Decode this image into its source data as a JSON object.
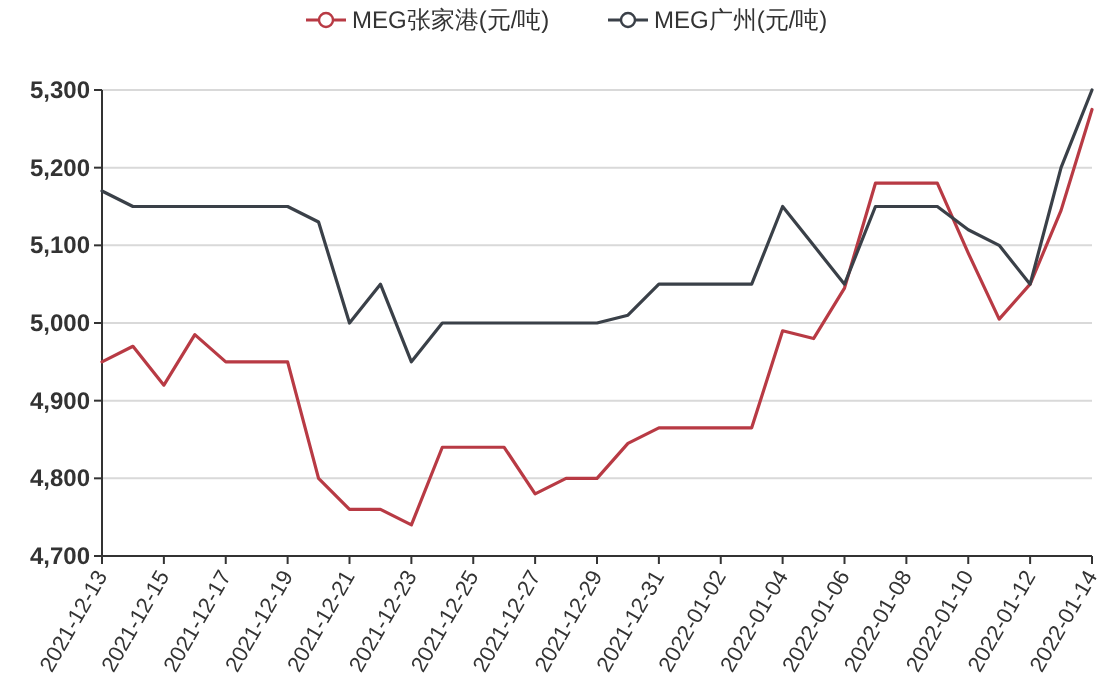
{
  "chart_data": {
    "type": "line",
    "x": [
      "2021-12-13",
      "2021-12-14",
      "2021-12-15",
      "2021-12-16",
      "2021-12-17",
      "2021-12-18",
      "2021-12-19",
      "2021-12-20",
      "2021-12-21",
      "2021-12-22",
      "2021-12-23",
      "2021-12-24",
      "2021-12-25",
      "2021-12-26",
      "2021-12-27",
      "2021-12-28",
      "2021-12-29",
      "2021-12-30",
      "2021-12-31",
      "2022-01-01",
      "2022-01-02",
      "2022-01-03",
      "2022-01-04",
      "2022-01-05",
      "2022-01-06",
      "2022-01-07",
      "2022-01-08",
      "2022-01-09",
      "2022-01-10",
      "2022-01-11",
      "2022-01-12",
      "2022-01-13",
      "2022-01-14"
    ],
    "series": [
      {
        "name": "MEG张家港(元/吨)",
        "color": "#b83a44",
        "values": [
          4950,
          4970,
          4920,
          4985,
          4950,
          4950,
          4950,
          4800,
          4760,
          4760,
          4740,
          4840,
          4840,
          4840,
          4780,
          4800,
          4800,
          4845,
          4865,
          4865,
          4865,
          4865,
          4990,
          4980,
          5045,
          5180,
          5180,
          5180,
          5090,
          5005,
          5050,
          5145,
          5275
        ]
      },
      {
        "name": "MEG广州(元/吨)",
        "color": "#3a4048",
        "values": [
          5170,
          5150,
          5150,
          5150,
          5150,
          5150,
          5150,
          5130,
          5000,
          5050,
          4950,
          5000,
          5000,
          5000,
          5000,
          5000,
          5000,
          5010,
          5050,
          5050,
          5050,
          5050,
          5150,
          5100,
          5050,
          5150,
          5150,
          5150,
          5120,
          5100,
          5050,
          5200,
          5300
        ]
      }
    ],
    "xlim": [
      "2021-12-13",
      "2022-01-14"
    ],
    "xticks": [
      "2021-12-13",
      "2021-12-15",
      "2021-12-17",
      "2021-12-19",
      "2021-12-21",
      "2021-12-23",
      "2021-12-25",
      "2021-12-27",
      "2021-12-29",
      "2021-12-31",
      "2022-01-02",
      "2022-01-04",
      "2022-01-06",
      "2022-01-08",
      "2022-01-10",
      "2022-01-12",
      "2022-01-14"
    ],
    "ylim": [
      4700,
      5300
    ],
    "yticks": [
      {
        "value": 4700,
        "label": "4,700"
      },
      {
        "value": 4800,
        "label": "4,800"
      },
      {
        "value": 4900,
        "label": "4,900"
      },
      {
        "value": 5000,
        "label": "5,000"
      },
      {
        "value": 5100,
        "label": "5,100"
      },
      {
        "value": 5200,
        "label": "5,200"
      },
      {
        "value": 5300,
        "label": "5,300"
      }
    ],
    "grid": "y",
    "legend": "top"
  }
}
